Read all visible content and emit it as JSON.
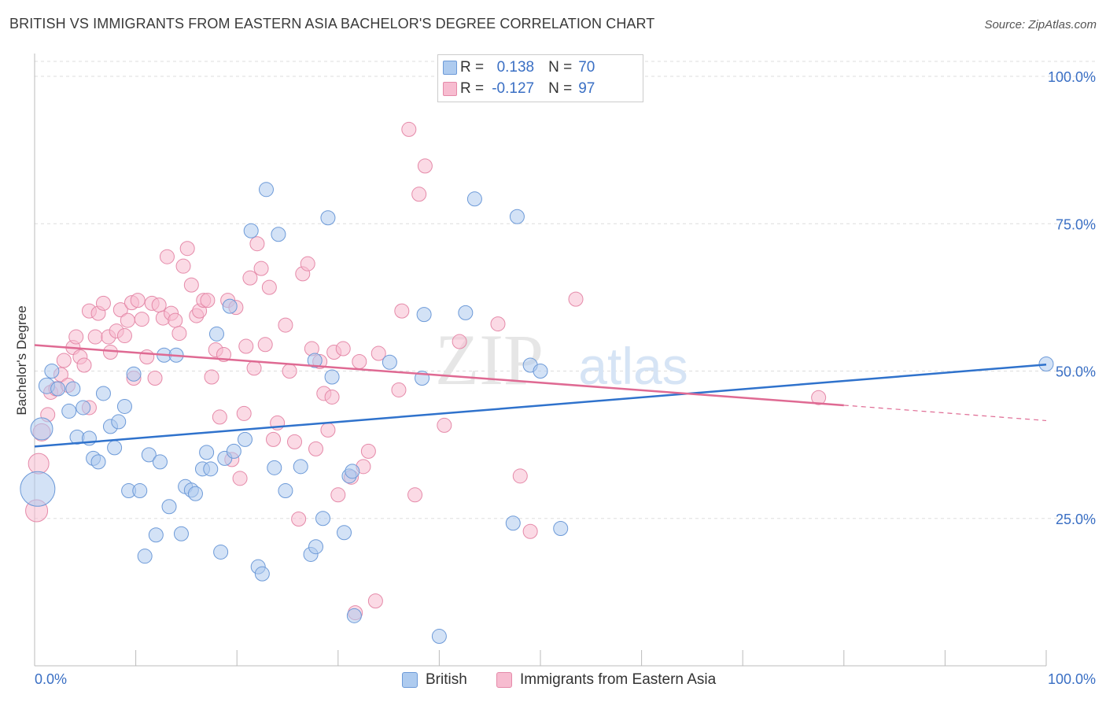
{
  "title": "BRITISH VS IMMIGRANTS FROM EASTERN ASIA BACHELOR'S DEGREE CORRELATION CHART",
  "source": "Source: ZipAtlas.com",
  "watermark": {
    "zip": "ZIP",
    "atlas": "atlas"
  },
  "legend_top": {
    "rows": [
      {
        "r_label": "R =",
        "r_value": "0.138",
        "n_label": "N =",
        "n_value": "70"
      },
      {
        "r_label": "R =",
        "r_value": "-0.127",
        "n_label": "N =",
        "n_value": "97"
      }
    ]
  },
  "legend_bottom": {
    "british": "British",
    "immigrants": "Immigrants from Eastern Asia"
  },
  "colors": {
    "british_fill": "#aecbef",
    "british_stroke": "#6d9ad8",
    "british_line": "#2f72cc",
    "immig_fill": "#f7bcd0",
    "immig_stroke": "#e58aa9",
    "immig_line": "#df6a93",
    "axis_text": "#3a6fc4",
    "grid": "#dddddd"
  },
  "chart_data": {
    "type": "scatter",
    "title": "BRITISH VS IMMIGRANTS FROM EASTERN ASIA BACHELOR'S DEGREE CORRELATION CHART",
    "xlabel": "",
    "ylabel": "Bachelor's Degree",
    "xlim": [
      0,
      100
    ],
    "ylim": [
      0,
      105
    ],
    "x_tick_labels": [
      "0.0%",
      "100.0%"
    ],
    "y_ticks": [
      25,
      50,
      75,
      100
    ],
    "y_tick_labels": [
      "25.0%",
      "50.0%",
      "75.0%",
      "100.0%"
    ],
    "grid": true,
    "legend_position": "top-center",
    "series": [
      {
        "name": "British",
        "r": 0.138,
        "n": 70,
        "trend": {
          "x0": 0,
          "y0": 37.2,
          "x1": 100,
          "y1": 51.1
        },
        "points": [
          {
            "x": 0.3,
            "y": 30.0,
            "s": 22
          },
          {
            "x": 0.7,
            "y": 40.2,
            "s": 14
          },
          {
            "x": 1.2,
            "y": 47.5,
            "s": 10
          },
          {
            "x": 1.7,
            "y": 50.0,
            "s": 9
          },
          {
            "x": 2.3,
            "y": 47.0,
            "s": 9
          },
          {
            "x": 3.4,
            "y": 43.2,
            "s": 9
          },
          {
            "x": 3.8,
            "y": 47.0,
            "s": 9
          },
          {
            "x": 4.2,
            "y": 38.8,
            "s": 9
          },
          {
            "x": 4.8,
            "y": 43.8,
            "s": 9
          },
          {
            "x": 5.4,
            "y": 38.6,
            "s": 9
          },
          {
            "x": 5.8,
            "y": 35.2,
            "s": 9
          },
          {
            "x": 6.3,
            "y": 34.6,
            "s": 9
          },
          {
            "x": 6.8,
            "y": 46.2,
            "s": 9
          },
          {
            "x": 7.5,
            "y": 40.6,
            "s": 9
          },
          {
            "x": 7.9,
            "y": 37.0,
            "s": 9
          },
          {
            "x": 8.3,
            "y": 41.4,
            "s": 9
          },
          {
            "x": 8.9,
            "y": 44.0,
            "s": 9
          },
          {
            "x": 9.3,
            "y": 29.7,
            "s": 9
          },
          {
            "x": 9.8,
            "y": 49.5,
            "s": 9
          },
          {
            "x": 10.4,
            "y": 29.7,
            "s": 9
          },
          {
            "x": 10.9,
            "y": 18.6,
            "s": 9
          },
          {
            "x": 11.3,
            "y": 35.8,
            "s": 9
          },
          {
            "x": 12.0,
            "y": 22.2,
            "s": 9
          },
          {
            "x": 12.4,
            "y": 34.6,
            "s": 9
          },
          {
            "x": 12.8,
            "y": 52.7,
            "s": 9
          },
          {
            "x": 13.3,
            "y": 27.0,
            "s": 9
          },
          {
            "x": 14.0,
            "y": 52.7,
            "s": 9
          },
          {
            "x": 14.5,
            "y": 22.4,
            "s": 9
          },
          {
            "x": 14.9,
            "y": 30.4,
            "s": 9
          },
          {
            "x": 15.5,
            "y": 29.8,
            "s": 9
          },
          {
            "x": 15.9,
            "y": 29.2,
            "s": 9
          },
          {
            "x": 16.6,
            "y": 33.4,
            "s": 9
          },
          {
            "x": 17.0,
            "y": 36.2,
            "s": 9
          },
          {
            "x": 17.4,
            "y": 33.4,
            "s": 9
          },
          {
            "x": 18.0,
            "y": 56.3,
            "s": 9
          },
          {
            "x": 18.4,
            "y": 19.3,
            "s": 9
          },
          {
            "x": 18.8,
            "y": 35.2,
            "s": 9
          },
          {
            "x": 19.3,
            "y": 61.0,
            "s": 9
          },
          {
            "x": 19.7,
            "y": 36.4,
            "s": 9
          },
          {
            "x": 20.8,
            "y": 38.4,
            "s": 9
          },
          {
            "x": 21.4,
            "y": 73.8,
            "s": 9
          },
          {
            "x": 22.1,
            "y": 16.8,
            "s": 9
          },
          {
            "x": 22.5,
            "y": 15.6,
            "s": 9
          },
          {
            "x": 22.9,
            "y": 80.8,
            "s": 9
          },
          {
            "x": 23.7,
            "y": 33.6,
            "s": 9
          },
          {
            "x": 24.1,
            "y": 73.2,
            "s": 9
          },
          {
            "x": 24.8,
            "y": 29.7,
            "s": 9
          },
          {
            "x": 26.3,
            "y": 33.8,
            "s": 9
          },
          {
            "x": 27.3,
            "y": 18.9,
            "s": 9
          },
          {
            "x": 27.8,
            "y": 20.2,
            "s": 9
          },
          {
            "x": 28.5,
            "y": 25.0,
            "s": 9
          },
          {
            "x": 29.0,
            "y": 76.0,
            "s": 9
          },
          {
            "x": 29.4,
            "y": 49.0,
            "s": 9
          },
          {
            "x": 30.6,
            "y": 22.6,
            "s": 9
          },
          {
            "x": 31.1,
            "y": 32.2,
            "s": 9
          },
          {
            "x": 31.6,
            "y": 8.5,
            "s": 9
          },
          {
            "x": 35.1,
            "y": 51.5,
            "s": 9
          },
          {
            "x": 38.3,
            "y": 48.8,
            "s": 9
          },
          {
            "x": 38.5,
            "y": 59.6,
            "s": 9
          },
          {
            "x": 40.0,
            "y": 5.0,
            "s": 9
          },
          {
            "x": 42.6,
            "y": 59.9,
            "s": 9
          },
          {
            "x": 43.5,
            "y": 79.2,
            "s": 9
          },
          {
            "x": 47.3,
            "y": 24.2,
            "s": 9
          },
          {
            "x": 47.7,
            "y": 76.2,
            "s": 9
          },
          {
            "x": 49.0,
            "y": 51.0,
            "s": 9
          },
          {
            "x": 50.0,
            "y": 50.0,
            "s": 9
          },
          {
            "x": 52.0,
            "y": 23.3,
            "s": 9
          },
          {
            "x": 100.0,
            "y": 51.2,
            "s": 9
          },
          {
            "x": 27.7,
            "y": 51.8,
            "s": 9
          },
          {
            "x": 31.4,
            "y": 33.0,
            "s": 9
          }
        ]
      },
      {
        "name": "Immigrants from Eastern Asia",
        "r": -0.127,
        "n": 97,
        "trend": {
          "x0": 0,
          "y0": 54.4,
          "x1": 80,
          "y1": 44.2,
          "dash_x1": 100,
          "dash_y1": 41.6
        },
        "points": [
          {
            "x": 0.2,
            "y": 26.3,
            "s": 14
          },
          {
            "x": 0.4,
            "y": 34.3,
            "s": 13
          },
          {
            "x": 0.7,
            "y": 39.6,
            "s": 11
          },
          {
            "x": 1.3,
            "y": 42.6,
            "s": 9
          },
          {
            "x": 1.6,
            "y": 46.4,
            "s": 9
          },
          {
            "x": 2.1,
            "y": 47.0,
            "s": 9
          },
          {
            "x": 2.6,
            "y": 49.4,
            "s": 9
          },
          {
            "x": 2.9,
            "y": 51.8,
            "s": 9
          },
          {
            "x": 3.3,
            "y": 47.6,
            "s": 9
          },
          {
            "x": 3.8,
            "y": 54.0,
            "s": 9
          },
          {
            "x": 4.1,
            "y": 55.8,
            "s": 9
          },
          {
            "x": 4.5,
            "y": 52.4,
            "s": 9
          },
          {
            "x": 4.9,
            "y": 51.0,
            "s": 9
          },
          {
            "x": 5.4,
            "y": 43.8,
            "s": 9
          },
          {
            "x": 5.4,
            "y": 60.2,
            "s": 9
          },
          {
            "x": 6.0,
            "y": 55.8,
            "s": 9
          },
          {
            "x": 6.3,
            "y": 59.8,
            "s": 9
          },
          {
            "x": 6.8,
            "y": 61.5,
            "s": 9
          },
          {
            "x": 7.3,
            "y": 55.8,
            "s": 9
          },
          {
            "x": 7.5,
            "y": 53.2,
            "s": 9
          },
          {
            "x": 8.1,
            "y": 56.8,
            "s": 9
          },
          {
            "x": 8.5,
            "y": 60.4,
            "s": 9
          },
          {
            "x": 8.9,
            "y": 56.0,
            "s": 9
          },
          {
            "x": 9.2,
            "y": 58.6,
            "s": 9
          },
          {
            "x": 9.6,
            "y": 61.6,
            "s": 9
          },
          {
            "x": 9.8,
            "y": 48.8,
            "s": 9
          },
          {
            "x": 10.2,
            "y": 62.0,
            "s": 9
          },
          {
            "x": 10.6,
            "y": 58.8,
            "s": 9
          },
          {
            "x": 11.1,
            "y": 52.4,
            "s": 9
          },
          {
            "x": 11.6,
            "y": 61.5,
            "s": 9
          },
          {
            "x": 11.9,
            "y": 48.8,
            "s": 9
          },
          {
            "x": 12.3,
            "y": 61.2,
            "s": 9
          },
          {
            "x": 12.7,
            "y": 59.0,
            "s": 9
          },
          {
            "x": 13.1,
            "y": 69.4,
            "s": 9
          },
          {
            "x": 13.5,
            "y": 59.8,
            "s": 9
          },
          {
            "x": 13.9,
            "y": 58.6,
            "s": 9
          },
          {
            "x": 14.3,
            "y": 56.4,
            "s": 9
          },
          {
            "x": 14.7,
            "y": 67.8,
            "s": 9
          },
          {
            "x": 15.1,
            "y": 70.8,
            "s": 9
          },
          {
            "x": 15.5,
            "y": 64.6,
            "s": 9
          },
          {
            "x": 16.0,
            "y": 59.4,
            "s": 9
          },
          {
            "x": 16.3,
            "y": 60.2,
            "s": 9
          },
          {
            "x": 16.7,
            "y": 62.0,
            "s": 9
          },
          {
            "x": 17.1,
            "y": 62.0,
            "s": 9
          },
          {
            "x": 17.5,
            "y": 49.0,
            "s": 9
          },
          {
            "x": 17.9,
            "y": 53.6,
            "s": 9
          },
          {
            "x": 18.3,
            "y": 42.2,
            "s": 9
          },
          {
            "x": 18.7,
            "y": 52.8,
            "s": 9
          },
          {
            "x": 19.1,
            "y": 62.0,
            "s": 9
          },
          {
            "x": 19.5,
            "y": 35.0,
            "s": 9
          },
          {
            "x": 19.9,
            "y": 60.8,
            "s": 9
          },
          {
            "x": 20.3,
            "y": 31.8,
            "s": 9
          },
          {
            "x": 20.7,
            "y": 42.8,
            "s": 9
          },
          {
            "x": 20.9,
            "y": 54.2,
            "s": 9
          },
          {
            "x": 21.3,
            "y": 65.8,
            "s": 9
          },
          {
            "x": 21.7,
            "y": 50.5,
            "s": 9
          },
          {
            "x": 22.0,
            "y": 71.6,
            "s": 9
          },
          {
            "x": 22.4,
            "y": 67.4,
            "s": 9
          },
          {
            "x": 22.8,
            "y": 54.5,
            "s": 9
          },
          {
            "x": 23.2,
            "y": 64.2,
            "s": 9
          },
          {
            "x": 23.6,
            "y": 38.4,
            "s": 9
          },
          {
            "x": 24.0,
            "y": 41.2,
            "s": 9
          },
          {
            "x": 24.8,
            "y": 57.8,
            "s": 9
          },
          {
            "x": 25.2,
            "y": 50.0,
            "s": 9
          },
          {
            "x": 25.7,
            "y": 38.0,
            "s": 9
          },
          {
            "x": 26.1,
            "y": 24.9,
            "s": 9
          },
          {
            "x": 26.5,
            "y": 66.5,
            "s": 9
          },
          {
            "x": 27.0,
            "y": 68.2,
            "s": 9
          },
          {
            "x": 27.4,
            "y": 53.8,
            "s": 9
          },
          {
            "x": 27.8,
            "y": 36.8,
            "s": 9
          },
          {
            "x": 28.2,
            "y": 51.6,
            "s": 9
          },
          {
            "x": 28.6,
            "y": 46.2,
            "s": 9
          },
          {
            "x": 29.0,
            "y": 40.0,
            "s": 9
          },
          {
            "x": 29.4,
            "y": 45.6,
            "s": 9
          },
          {
            "x": 29.6,
            "y": 53.2,
            "s": 9
          },
          {
            "x": 30.0,
            "y": 29.0,
            "s": 9
          },
          {
            "x": 30.5,
            "y": 53.8,
            "s": 9
          },
          {
            "x": 31.3,
            "y": 32.0,
            "s": 9
          },
          {
            "x": 31.7,
            "y": 9.0,
            "s": 9
          },
          {
            "x": 32.1,
            "y": 51.6,
            "s": 9
          },
          {
            "x": 32.5,
            "y": 33.8,
            "s": 9
          },
          {
            "x": 33.0,
            "y": 36.4,
            "s": 9
          },
          {
            "x": 33.7,
            "y": 11.0,
            "s": 9
          },
          {
            "x": 34.0,
            "y": 53.0,
            "s": 9
          },
          {
            "x": 36.0,
            "y": 46.8,
            "s": 9
          },
          {
            "x": 37.0,
            "y": 91.0,
            "s": 9
          },
          {
            "x": 37.6,
            "y": 29.0,
            "s": 9
          },
          {
            "x": 38.0,
            "y": 80.0,
            "s": 9
          },
          {
            "x": 38.6,
            "y": 84.8,
            "s": 9
          },
          {
            "x": 40.5,
            "y": 40.8,
            "s": 9
          },
          {
            "x": 42.0,
            "y": 55.0,
            "s": 9
          },
          {
            "x": 45.8,
            "y": 58.0,
            "s": 9
          },
          {
            "x": 48.0,
            "y": 32.2,
            "s": 9
          },
          {
            "x": 49.0,
            "y": 22.8,
            "s": 9
          },
          {
            "x": 53.5,
            "y": 62.2,
            "s": 9
          },
          {
            "x": 77.5,
            "y": 45.5,
            "s": 9
          },
          {
            "x": 36.3,
            "y": 60.2,
            "s": 9
          }
        ]
      }
    ]
  }
}
